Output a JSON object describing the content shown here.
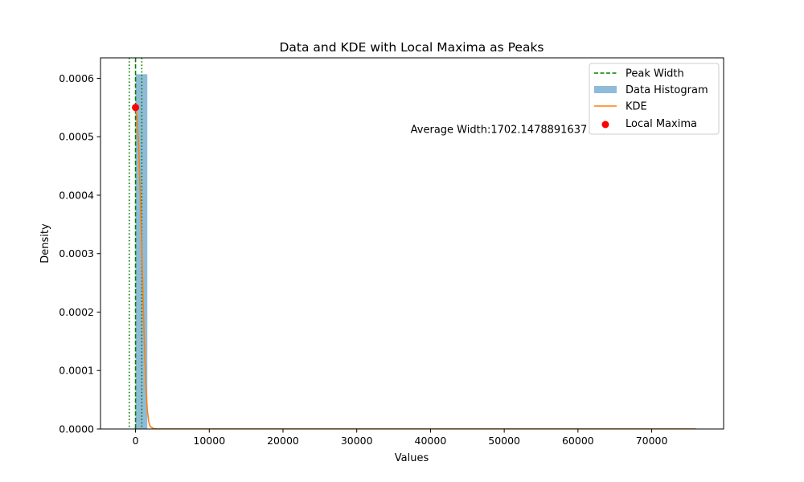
{
  "chart_data": {
    "type": "histogram",
    "title": "Data and KDE with Local Maxima as Peaks",
    "xlabel": "Values",
    "ylabel": "Density",
    "xlim": [
      -4750,
      79750
    ],
    "ylim": [
      0,
      0.000635
    ],
    "x_ticks": [
      0,
      10000,
      20000,
      30000,
      40000,
      50000,
      60000,
      70000
    ],
    "x_tick_labels": [
      "0",
      "10000",
      "20000",
      "30000",
      "40000",
      "50000",
      "60000",
      "70000"
    ],
    "y_ticks": [
      0,
      0.0001,
      0.0002,
      0.0003,
      0.0004,
      0.0005,
      0.0006
    ],
    "y_tick_labels": [
      "0.0000",
      "0.0001",
      "0.0002",
      "0.0003",
      "0.0004",
      "0.0005",
      "0.0006"
    ],
    "grid": false,
    "legend_position": "top-right",
    "histogram": {
      "name": "Data Histogram",
      "color": "#1f77b4",
      "alpha": 0.5,
      "bins": [
        {
          "x0": 0,
          "x1": 1600,
          "density": 0.000607
        }
      ]
    },
    "kde": {
      "name": "KDE",
      "color": "#ff7f0e",
      "x": [
        0,
        200,
        400,
        600,
        800,
        1000,
        1200,
        1400,
        1600,
        1800,
        2000,
        2500,
        3000,
        4000,
        76000
      ],
      "y": [
        0.00055,
        0.000535,
        0.00049,
        0.00042,
        0.00033,
        0.000235,
        0.000145,
        7.5e-05,
        3.2e-05,
        1.2e-05,
        4e-06,
        5e-07,
        1e-07,
        1e-07,
        1e-07
      ]
    },
    "local_maxima": {
      "name": "Local Maxima",
      "color": "#ff0000",
      "points": [
        {
          "x": 0,
          "y": 0.00055
        }
      ]
    },
    "peak_width": {
      "name": "Peak Width",
      "color": "#008000",
      "center": 0,
      "bounds": [
        -851,
        851
      ]
    },
    "annotation": {
      "text": "Average Width:1702.1478891637",
      "x": 37300,
      "y": 0.000512
    }
  }
}
